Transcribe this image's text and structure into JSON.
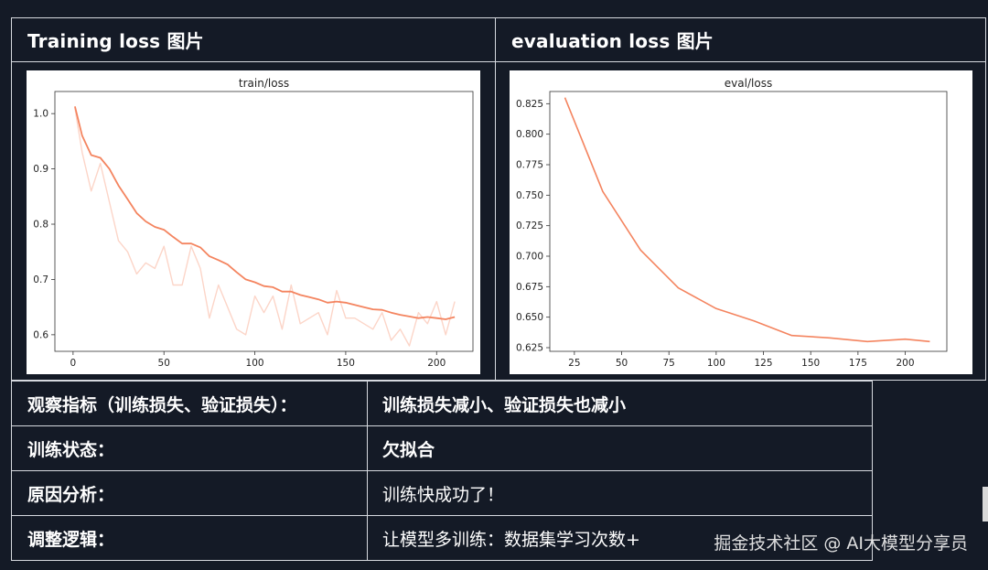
{
  "panels": {
    "left_title": "Training loss 图片",
    "right_title": "evaluation loss 图片"
  },
  "chart_data": [
    {
      "type": "line",
      "title": "train/loss",
      "xlim": [
        -10,
        220
      ],
      "ylim": [
        0.57,
        1.04
      ],
      "xticks": [
        0,
        50,
        100,
        150,
        200
      ],
      "yticks": [
        0.6,
        0.7,
        0.8,
        0.9,
        1.0
      ],
      "ytick_labels": [
        "0.6",
        "0.7",
        "0.8",
        "0.9",
        "1.0"
      ],
      "colors": {
        "smoothed": "#f4845f",
        "raw": "#fcd5c8"
      },
      "series": [
        {
          "role": "raw",
          "x": [
            1,
            5,
            10,
            15,
            20,
            25,
            30,
            35,
            40,
            45,
            50,
            55,
            60,
            65,
            70,
            75,
            80,
            85,
            90,
            95,
            100,
            105,
            110,
            115,
            120,
            125,
            130,
            135,
            140,
            145,
            150,
            155,
            160,
            165,
            170,
            175,
            180,
            185,
            190,
            195,
            200,
            205,
            210
          ],
          "y": [
            1.01,
            0.93,
            0.86,
            0.91,
            0.84,
            0.77,
            0.75,
            0.71,
            0.73,
            0.72,
            0.76,
            0.69,
            0.69,
            0.76,
            0.72,
            0.63,
            0.69,
            0.65,
            0.61,
            0.6,
            0.67,
            0.64,
            0.67,
            0.61,
            0.69,
            0.62,
            0.63,
            0.64,
            0.6,
            0.68,
            0.63,
            0.63,
            0.62,
            0.61,
            0.64,
            0.59,
            0.61,
            0.58,
            0.64,
            0.62,
            0.66,
            0.6,
            0.66
          ]
        },
        {
          "role": "smoothed",
          "x": [
            1,
            5,
            10,
            15,
            20,
            25,
            30,
            35,
            40,
            45,
            50,
            55,
            60,
            65,
            70,
            75,
            80,
            85,
            90,
            95,
            100,
            105,
            110,
            115,
            120,
            125,
            130,
            135,
            140,
            145,
            150,
            155,
            160,
            165,
            170,
            175,
            180,
            185,
            190,
            195,
            200,
            205,
            210
          ],
          "y": [
            1.013,
            0.96,
            0.925,
            0.92,
            0.9,
            0.87,
            0.845,
            0.82,
            0.805,
            0.795,
            0.79,
            0.777,
            0.765,
            0.765,
            0.758,
            0.742,
            0.735,
            0.727,
            0.713,
            0.7,
            0.695,
            0.688,
            0.686,
            0.678,
            0.678,
            0.672,
            0.668,
            0.664,
            0.658,
            0.66,
            0.658,
            0.654,
            0.65,
            0.646,
            0.645,
            0.64,
            0.636,
            0.633,
            0.63,
            0.632,
            0.63,
            0.628,
            0.632
          ]
        }
      ]
    },
    {
      "type": "line",
      "title": "eval/loss",
      "xlim": [
        12,
        222
      ],
      "ylim": [
        0.622,
        0.835
      ],
      "xticks": [
        25,
        50,
        75,
        100,
        125,
        150,
        175,
        200
      ],
      "yticks": [
        0.625,
        0.65,
        0.675,
        0.7,
        0.725,
        0.75,
        0.775,
        0.8,
        0.825
      ],
      "ytick_labels": [
        "0.625",
        "0.650",
        "0.675",
        "0.700",
        "0.725",
        "0.750",
        "0.775",
        "0.800",
        "0.825"
      ],
      "colors": {
        "line": "#f4845f"
      },
      "series": [
        {
          "x": [
            20,
            40,
            60,
            80,
            100,
            120,
            140,
            160,
            180,
            200,
            213
          ],
          "y": [
            0.83,
            0.753,
            0.705,
            0.674,
            0.657,
            0.647,
            0.635,
            0.633,
            0.63,
            0.632,
            0.63
          ]
        }
      ]
    }
  ],
  "table": {
    "rows": [
      {
        "label": "观察指标（训练损失、验证损失）：",
        "value": "训练损失减小、验证损失也减小"
      },
      {
        "label": "训练状态：",
        "value": "欠拟合"
      },
      {
        "label": "原因分析：",
        "value": "训练快成功了！"
      },
      {
        "label": "调整逻辑：",
        "value": "让模型多训练：数据集学习次数+"
      }
    ]
  },
  "watermark": "掘金技术社区 @ AI大模型分享员"
}
